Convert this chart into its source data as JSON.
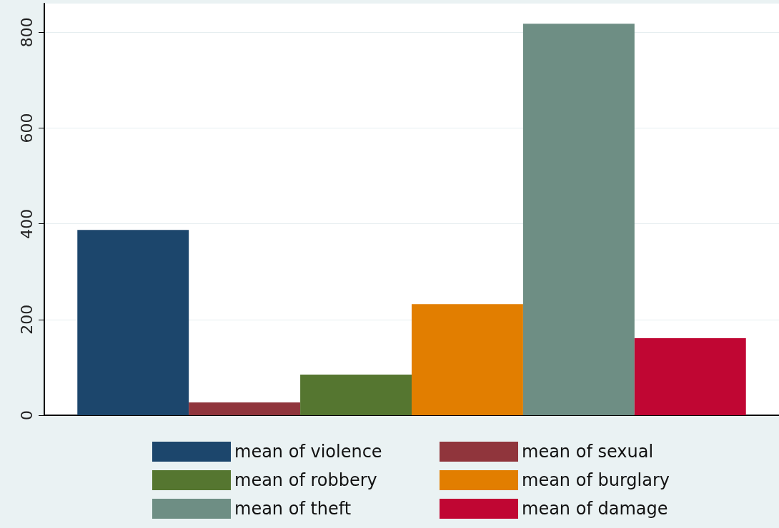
{
  "chart_data": {
    "type": "bar",
    "categories": [
      null
    ],
    "series": [
      {
        "name": "mean of violence",
        "color": "#1c466c",
        "values": [
          387
        ]
      },
      {
        "name": "mean of sexual",
        "color": "#90353c",
        "values": [
          27
        ]
      },
      {
        "name": "mean of robbery",
        "color": "#557630",
        "values": [
          85
        ]
      },
      {
        "name": "mean of burglary",
        "color": "#e27e00",
        "values": [
          232
        ]
      },
      {
        "name": "mean of theft",
        "color": "#6e8e84",
        "values": [
          818
        ]
      },
      {
        "name": "mean of damage",
        "color": "#c00633",
        "values": [
          161
        ]
      }
    ],
    "ylim": [
      0,
      860
    ],
    "yticks": [
      0,
      200,
      400,
      600,
      800
    ],
    "grid": "y",
    "legend": "bottom"
  }
}
